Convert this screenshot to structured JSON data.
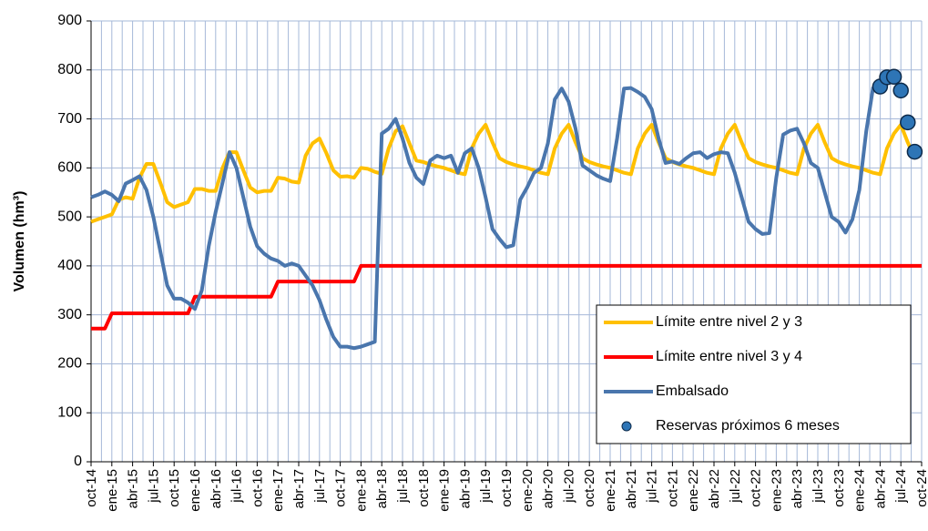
{
  "chart_data": {
    "type": "line",
    "y_label": "Volumen (hm³)",
    "ylim": [
      0,
      900
    ],
    "yticks": [
      0,
      100,
      200,
      300,
      400,
      500,
      600,
      700,
      800,
      900
    ],
    "grid": true,
    "legend": "lower right",
    "categories": [
      "oct-14",
      null,
      null,
      "ene-15",
      null,
      null,
      "abr-15",
      null,
      null,
      "jul-15",
      null,
      null,
      "oct-15",
      null,
      null,
      "ene-16",
      null,
      null,
      "abr-16",
      null,
      null,
      "jul-16",
      null,
      null,
      "oct-16",
      null,
      null,
      "ene-17",
      null,
      null,
      "abr-17",
      null,
      null,
      "jul-17",
      null,
      null,
      "oct-17",
      null,
      null,
      "ene-18",
      null,
      null,
      "abr-18",
      null,
      null,
      "jul-18",
      null,
      null,
      "oct-18",
      null,
      null,
      "ene-19",
      null,
      null,
      "abr-19",
      null,
      null,
      "jul-19",
      null,
      null,
      "oct-19",
      null,
      null,
      "ene-20",
      null,
      null,
      "abr-20",
      null,
      null,
      "jul-20",
      null,
      null,
      "oct-20",
      null,
      null,
      "ene-21",
      null,
      null,
      "abr-21",
      null,
      null,
      "jul-21",
      null,
      null,
      "oct-21",
      null,
      null,
      "ene-22",
      null,
      null,
      "abr-22",
      null,
      null,
      "jul-22",
      null,
      null,
      "oct-22",
      null,
      null,
      "ene-23",
      null,
      null,
      "abr-23",
      null,
      null,
      "jul-23",
      null,
      null,
      "oct-23",
      null,
      null,
      "ene-24",
      null,
      null,
      "abr-24",
      null,
      null,
      "jul-24",
      null,
      null,
      "oct-24"
    ],
    "series": [
      {
        "name": "Límite entre nivel 2 y 3",
        "color": "#ffc000",
        "mode": "line",
        "values": [
          490,
          495,
          500,
          505,
          535,
          540,
          537,
          580,
          608,
          608,
          570,
          530,
          520,
          525,
          530,
          557,
          557,
          553,
          553,
          600,
          632,
          632,
          595,
          560,
          550,
          553,
          553,
          580,
          578,
          572,
          570,
          625,
          650,
          660,
          630,
          595,
          582,
          583,
          580,
          600,
          598,
          592,
          588,
          640,
          675,
          685,
          650,
          615,
          612,
          607,
          603,
          600,
          595,
          590,
          587,
          640,
          670,
          688,
          652,
          620,
          612,
          607,
          603,
          600,
          595,
          590,
          587,
          640,
          670,
          688,
          652,
          620,
          612,
          607,
          603,
          600,
          595,
          590,
          587,
          640,
          670,
          688,
          652,
          620,
          612,
          607,
          603,
          600,
          595,
          590,
          587,
          640,
          670,
          688,
          652,
          620,
          612,
          607,
          603,
          600,
          595,
          590,
          587,
          640,
          670,
          688,
          652,
          620,
          612,
          607,
          603,
          600,
          595,
          590,
          587,
          640,
          670,
          688,
          652,
          620,
          null
        ]
      },
      {
        "name": "Límite entre nivel 3 y 4",
        "color": "#ff0000",
        "mode": "line",
        "values": [
          272,
          272,
          272,
          303,
          303,
          303,
          303,
          303,
          303,
          303,
          303,
          303,
          303,
          303,
          303,
          337,
          337,
          337,
          337,
          337,
          337,
          337,
          337,
          337,
          337,
          337,
          337,
          368,
          368,
          368,
          368,
          368,
          368,
          368,
          368,
          368,
          368,
          368,
          368,
          400,
          400,
          400,
          400,
          400,
          400,
          400,
          400,
          400,
          400,
          400,
          400,
          400,
          400,
          400,
          400,
          400,
          400,
          400,
          400,
          400,
          400,
          400,
          400,
          400,
          400,
          400,
          400,
          400,
          400,
          400,
          400,
          400,
          400,
          400,
          400,
          400,
          400,
          400,
          400,
          400,
          400,
          400,
          400,
          400,
          400,
          400,
          400,
          400,
          400,
          400,
          400,
          400,
          400,
          400,
          400,
          400,
          400,
          400,
          400,
          400,
          400,
          400,
          400,
          400,
          400,
          400,
          400,
          400,
          400,
          400,
          400,
          400,
          400,
          400,
          400,
          400,
          400,
          400,
          400,
          400,
          400
        ]
      },
      {
        "name": "Embalsado",
        "color": "#4a76ad",
        "mode": "line",
        "values": [
          540,
          545,
          552,
          545,
          532,
          568,
          575,
          583,
          555,
          500,
          430,
          360,
          333,
          333,
          325,
          312,
          350,
          440,
          510,
          570,
          632,
          600,
          540,
          480,
          440,
          425,
          415,
          410,
          400,
          405,
          400,
          380,
          360,
          330,
          290,
          255,
          235,
          235,
          232,
          235,
          240,
          245,
          670,
          680,
          700,
          660,
          610,
          580,
          567,
          615,
          625,
          620,
          625,
          590,
          630,
          640,
          600,
          540,
          475,
          455,
          438,
          442,
          535,
          560,
          590,
          600,
          650,
          740,
          762,
          735,
          680,
          605,
          595,
          585,
          578,
          573,
          660,
          762,
          763,
          755,
          745,
          720,
          660,
          610,
          613,
          608,
          620,
          630,
          632,
          620,
          628,
          632,
          630,
          590,
          540,
          490,
          475,
          465,
          467,
          580,
          668,
          676,
          680,
          650,
          610,
          600,
          550,
          500,
          490,
          468,
          495,
          555,
          675,
          765,
          null,
          null,
          null,
          null,
          null,
          null,
          null
        ]
      },
      {
        "name": "Reservas próximos 6 meses",
        "color": "#2e75b6",
        "mode": "markers",
        "values": [
          null,
          null,
          null,
          null,
          null,
          null,
          null,
          null,
          null,
          null,
          null,
          null,
          null,
          null,
          null,
          null,
          null,
          null,
          null,
          null,
          null,
          null,
          null,
          null,
          null,
          null,
          null,
          null,
          null,
          null,
          null,
          null,
          null,
          null,
          null,
          null,
          null,
          null,
          null,
          null,
          null,
          null,
          null,
          null,
          null,
          null,
          null,
          null,
          null,
          null,
          null,
          null,
          null,
          null,
          null,
          null,
          null,
          null,
          null,
          null,
          null,
          null,
          null,
          null,
          null,
          null,
          null,
          null,
          null,
          null,
          null,
          null,
          null,
          null,
          null,
          null,
          null,
          null,
          null,
          null,
          null,
          null,
          null,
          null,
          null,
          null,
          null,
          null,
          null,
          null,
          null,
          null,
          null,
          null,
          null,
          null,
          null,
          null,
          null,
          null,
          null,
          null,
          null,
          null,
          null,
          null,
          null,
          null,
          null,
          null,
          null,
          null,
          null,
          null,
          766,
          785,
          786,
          758,
          693,
          633,
          null
        ]
      }
    ]
  }
}
